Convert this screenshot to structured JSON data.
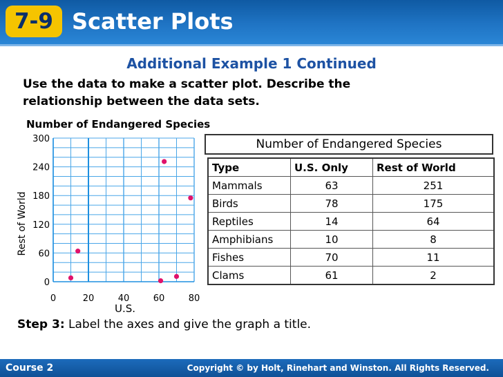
{
  "header": {
    "badge": "7-9",
    "title": "Scatter Plots"
  },
  "subtitle": "Additional Example 1 Continued",
  "prompt": {
    "line1": "Use the data to make a scatter plot. Describe the",
    "line2": "relationship between the data sets."
  },
  "chart_data": {
    "type": "scatter",
    "title": "Number of Endangered Species",
    "xlabel": "U.S.",
    "ylabel": "Rest of World",
    "xlim": [
      0,
      80
    ],
    "ylim": [
      0,
      300
    ],
    "x_ticks": [
      0,
      20,
      40,
      60,
      80
    ],
    "y_ticks": [
      0,
      60,
      120,
      180,
      240,
      300
    ],
    "grid": true,
    "x": [
      63,
      78,
      14,
      10,
      70,
      61
    ],
    "y": [
      251,
      175,
      64,
      8,
      11,
      2
    ],
    "point_color": "#e0126b",
    "grid_color": "#49a6e8"
  },
  "table": {
    "title": "Number of Endangered Species",
    "headers": [
      "Type",
      "U.S. Only",
      "Rest of World"
    ],
    "rows": [
      [
        "Mammals",
        "63",
        "251"
      ],
      [
        "Birds",
        "78",
        "175"
      ],
      [
        "Reptiles",
        "14",
        "64"
      ],
      [
        "Amphibians",
        "10",
        "8"
      ],
      [
        "Fishes",
        "70",
        "11"
      ],
      [
        "Clams",
        "61",
        "2"
      ]
    ]
  },
  "step": {
    "label": "Step 3:",
    "text": " Label the axes and give the graph a title."
  },
  "footer": {
    "left": "Course 2",
    "right": "Copyright © by Holt, Rinehart and Winston. All Rights Reserved."
  }
}
